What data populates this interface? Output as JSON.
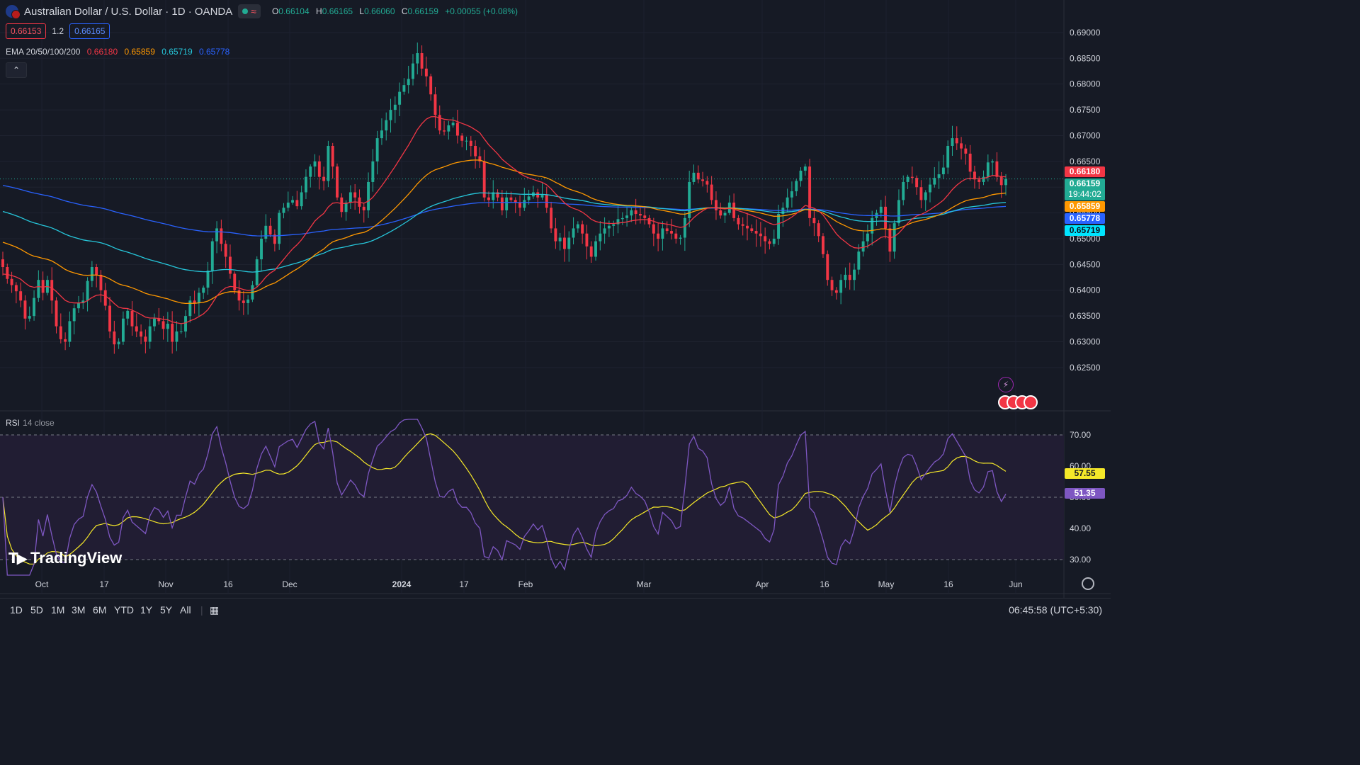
{
  "header": {
    "title": "Australian Dollar / U.S. Dollar · 1D · OANDA",
    "open_label": "O",
    "open": "0.66104",
    "high_label": "H",
    "high": "0.66165",
    "low_label": "L",
    "low": "0.66060",
    "close_label": "C",
    "close": "0.66159",
    "change": "+0.00055 (+0.08%)"
  },
  "quote": {
    "bid": "0.66153",
    "spread": "1.2",
    "ask": "0.66165"
  },
  "ema": {
    "label": "EMA 20/50/100/200",
    "ema20": "0.66180",
    "ema50": "0.65859",
    "ema100": "0.65719",
    "ema200": "0.65778"
  },
  "rsi": {
    "label": "RSI",
    "params": "14 close",
    "rsi_value": "51.35",
    "ma_value": "57.55"
  },
  "price_tags": {
    "ema20": "0.66180",
    "last": "0.66159",
    "countdown": "19:44:02",
    "ema50": "0.65859",
    "ema200": "0.65778",
    "ema100": "0.65719"
  },
  "colors": {
    "background": "#161a25",
    "up": "#22ab94",
    "down": "#f23645",
    "ema20": "#f23645",
    "ema50": "#ff9800",
    "ema100": "#26c6da",
    "ema200": "#2962ff",
    "rsi": "#7e57c2",
    "rsi_ma": "#f5e829"
  },
  "toolbar": {
    "timeframes": [
      "1D",
      "5D",
      "1M",
      "3M",
      "6M",
      "YTD",
      "1Y",
      "5Y",
      "All"
    ],
    "clock": "06:45:58 (UTC+5:30)"
  },
  "logo": "TradingView",
  "chart_data": [
    {
      "type": "candlestick",
      "title": "Australian Dollar / U.S. Dollar · 1D · OANDA",
      "x_tick_labels": [
        "Oct",
        "17",
        "Nov",
        "16",
        "Dec",
        "2024",
        "17",
        "Feb",
        "Mar",
        "Apr",
        "16",
        "May",
        "16",
        "Jun"
      ],
      "y_tick_labels": [
        "0.69000",
        "0.68500",
        "0.68000",
        "0.67500",
        "0.67000",
        "0.66500",
        "0.66000",
        "0.65500",
        "0.65000",
        "0.64500",
        "0.64000",
        "0.63500",
        "0.63000",
        "0.62500"
      ],
      "ylim": [
        0.621,
        0.6915
      ],
      "closes": [
        0.6445,
        0.6422,
        0.641,
        0.6398,
        0.638,
        0.6345,
        0.635,
        0.6385,
        0.642,
        0.6395,
        0.642,
        0.638,
        0.633,
        0.6305,
        0.63,
        0.634,
        0.6365,
        0.6375,
        0.638,
        0.6418,
        0.6445,
        0.643,
        0.64,
        0.637,
        0.632,
        0.6295,
        0.63,
        0.6345,
        0.636,
        0.633,
        0.632,
        0.631,
        0.63,
        0.633,
        0.6345,
        0.634,
        0.6325,
        0.6335,
        0.63,
        0.632,
        0.632,
        0.635,
        0.638,
        0.6375,
        0.6395,
        0.6405,
        0.6438,
        0.6495,
        0.652,
        0.649,
        0.6465,
        0.6432,
        0.64,
        0.638,
        0.6375,
        0.6382,
        0.641,
        0.646,
        0.65,
        0.6525,
        0.6508,
        0.649,
        0.655,
        0.656,
        0.657,
        0.6575,
        0.6563,
        0.659,
        0.662,
        0.664,
        0.665,
        0.662,
        0.6612,
        0.668,
        0.664,
        0.658,
        0.6552,
        0.657,
        0.659,
        0.658,
        0.6562,
        0.6555,
        0.661,
        0.665,
        0.6695,
        0.671,
        0.673,
        0.675,
        0.676,
        0.6785,
        0.6798,
        0.681,
        0.684,
        0.686,
        0.683,
        0.6815,
        0.678,
        0.674,
        0.671,
        0.6708,
        0.672,
        0.6725,
        0.67,
        0.669,
        0.669,
        0.668,
        0.666,
        0.665,
        0.658,
        0.6575,
        0.659,
        0.658,
        0.6555,
        0.658,
        0.6575,
        0.657,
        0.656,
        0.6575,
        0.6582,
        0.659,
        0.658,
        0.6585,
        0.656,
        0.652,
        0.6495,
        0.6502,
        0.648,
        0.6502,
        0.652,
        0.6528,
        0.651,
        0.6485,
        0.6465,
        0.6495,
        0.651,
        0.652,
        0.6525,
        0.6528,
        0.6538,
        0.654,
        0.6545,
        0.6555,
        0.6548,
        0.6545,
        0.654,
        0.6528,
        0.651,
        0.65,
        0.652,
        0.6515,
        0.651,
        0.65,
        0.6502,
        0.654,
        0.661,
        0.6628,
        0.6615,
        0.6612,
        0.6605,
        0.6575,
        0.6555,
        0.6545,
        0.655,
        0.657,
        0.654,
        0.6528,
        0.6525,
        0.652,
        0.6515,
        0.651,
        0.6505,
        0.6495,
        0.649,
        0.65,
        0.6548,
        0.656,
        0.658,
        0.6592,
        0.6612,
        0.6632,
        0.664,
        0.654,
        0.653,
        0.6505,
        0.647,
        0.642,
        0.64,
        0.6395,
        0.642,
        0.643,
        0.642,
        0.644,
        0.6475,
        0.6495,
        0.651,
        0.654,
        0.655,
        0.6562,
        0.652,
        0.6475,
        0.653,
        0.6575,
        0.661,
        0.662,
        0.6618,
        0.66,
        0.6575,
        0.659,
        0.6605,
        0.6618,
        0.6625,
        0.6638,
        0.668,
        0.6695,
        0.6685,
        0.6675,
        0.6665,
        0.663,
        0.6615,
        0.661,
        0.662,
        0.6648,
        0.665,
        0.662,
        0.6604,
        0.6616
      ],
      "overlays": [
        "EMA 20",
        "EMA 50",
        "EMA 100",
        "EMA 200"
      ]
    },
    {
      "type": "line",
      "title": "RSI 14 close",
      "y_tick_labels": [
        "70.00",
        "60.00",
        "50.00",
        "40.00",
        "30.00"
      ],
      "ylim": [
        30,
        70
      ],
      "bands": [
        30,
        50,
        70
      ],
      "last_values": {
        "rsi": 51.35,
        "ma": 57.55
      }
    }
  ]
}
